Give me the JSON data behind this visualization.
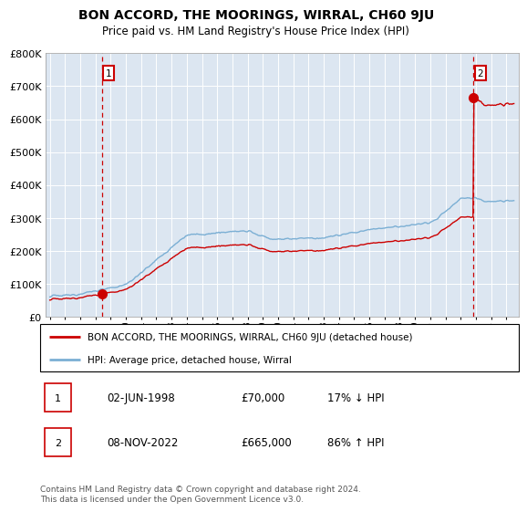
{
  "title": "BON ACCORD, THE MOORINGS, WIRRAL, CH60 9JU",
  "subtitle": "Price paid vs. HM Land Registry's House Price Index (HPI)",
  "legend_line1": "BON ACCORD, THE MOORINGS, WIRRAL, CH60 9JU (detached house)",
  "legend_line2": "HPI: Average price, detached house, Wirral",
  "annotation1": {
    "num": "1",
    "date": "02-JUN-1998",
    "price": "£70,000",
    "pct": "17% ↓ HPI"
  },
  "annotation2": {
    "num": "2",
    "date": "08-NOV-2022",
    "price": "£665,000",
    "pct": "86% ↑ HPI"
  },
  "footer": "Contains HM Land Registry data © Crown copyright and database right 2024.\nThis data is licensed under the Open Government Licence v3.0.",
  "hpi_color": "#7bafd4",
  "price_color": "#cc0000",
  "bg_color": "#dce6f1",
  "grid_color": "#c8d8e8",
  "sale1_year": 1998.42,
  "sale1_price": 70000,
  "sale2_year": 2022.85,
  "sale2_price": 665000,
  "ylim": [
    0,
    800000
  ],
  "xlim_start": 1994.7,
  "xlim_end": 2025.8
}
